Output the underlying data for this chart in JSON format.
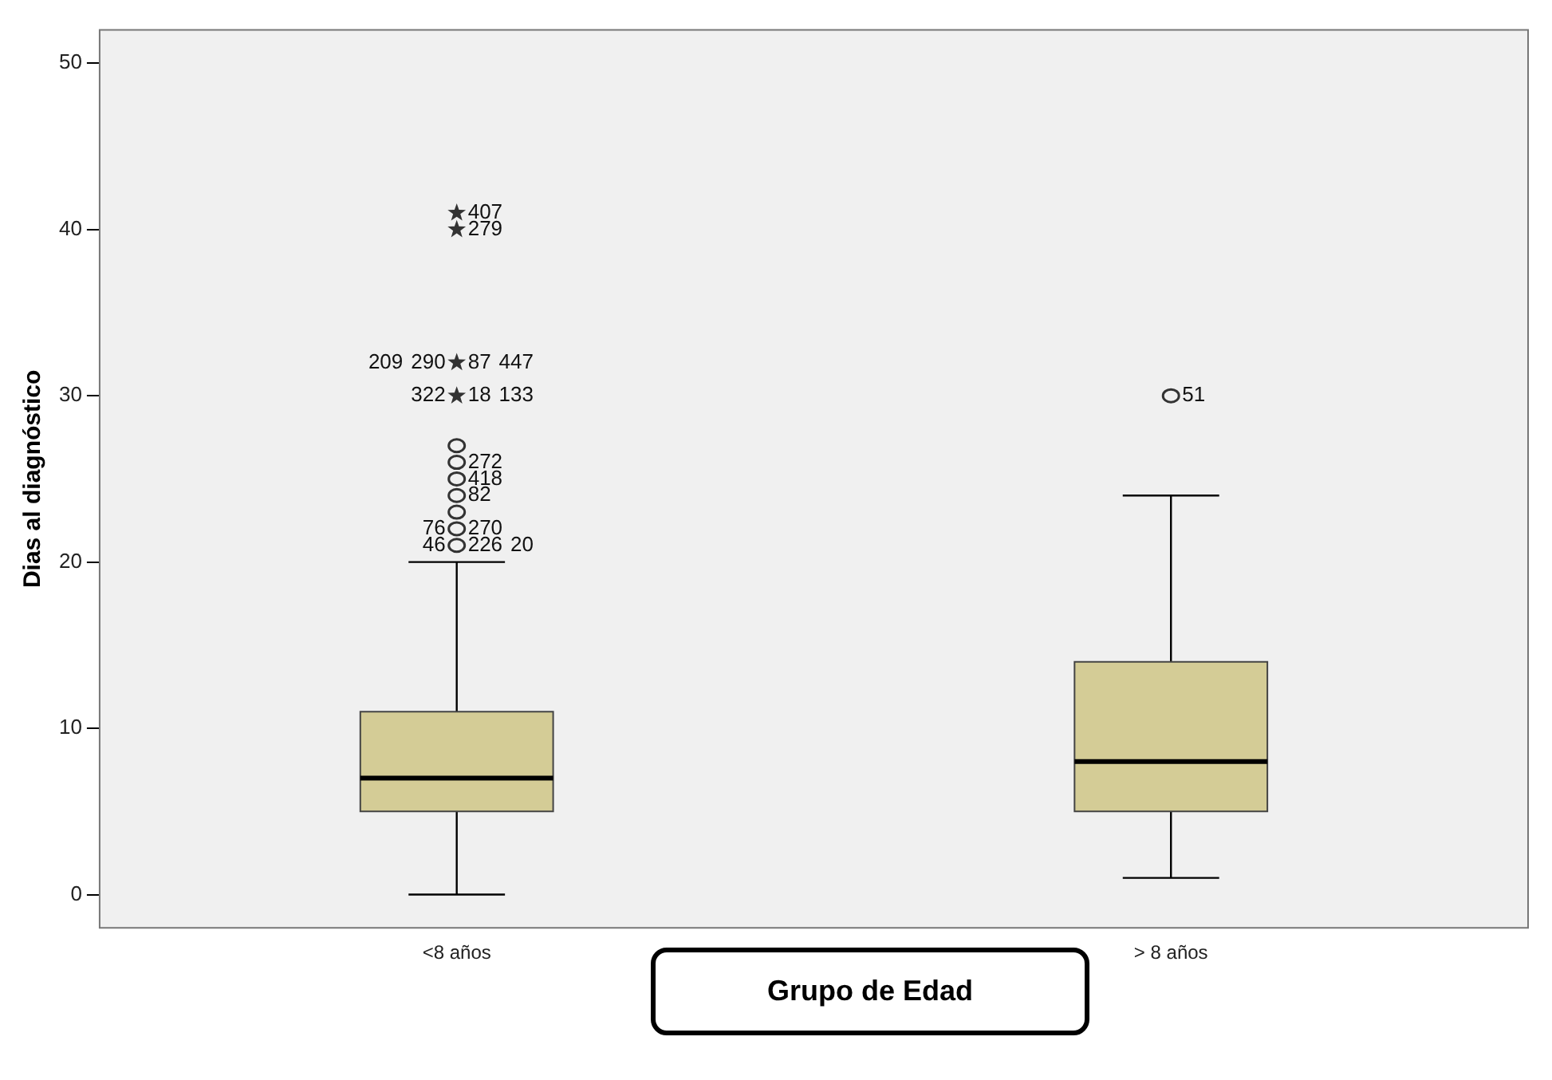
{
  "chart_data": {
    "type": "box",
    "xlabel": "Grupo de Edad",
    "ylabel": "Dias al diagnóstico",
    "categories": [
      "<8 años",
      "> 8 años"
    ],
    "color": "#d4cc96",
    "boxes": [
      {
        "low": 0,
        "q1": 5,
        "median": 7,
        "q3": 11,
        "high": 20
      },
      {
        "low": 1,
        "q1": 5,
        "median": 8,
        "q3": 14,
        "high": 24
      }
    ],
    "series": [
      {
        "type": "scatter",
        "marker": "circle",
        "color": "#333333",
        "x": [
          "<8 años",
          "<8 años",
          "<8 años",
          "<8 años",
          "<8 años",
          "<8 años",
          "<8 años",
          "> 8 años"
        ],
        "values": [
          21,
          22,
          23,
          24,
          25,
          26,
          27,
          30
        ]
      },
      {
        "type": "scatter",
        "marker": "star",
        "color": "#333333",
        "x": [
          "<8 años",
          "<8 años",
          "<8 años",
          "<8 años"
        ],
        "values": [
          30,
          32,
          40,
          41
        ]
      }
    ],
    "ylim": [
      -2,
      52
    ],
    "yticks": [
      0,
      10,
      20,
      30,
      40,
      50
    ],
    "grid": false,
    "legend": false,
    "annotations": [
      {
        "text": "407",
        "x": "<8 años",
        "y": 41
      },
      {
        "text": "279",
        "x": "<8 años",
        "y": 40
      },
      {
        "text": "87",
        "x": "<8 años",
        "y": 32
      },
      {
        "text": "290",
        "x": "<8 años",
        "y": 32
      },
      {
        "text": "447",
        "x": "<8 años",
        "y": 32
      },
      {
        "text": "209",
        "x": "<8 años",
        "y": 32
      },
      {
        "text": "18",
        "x": "<8 años",
        "y": 30
      },
      {
        "text": "322",
        "x": "<8 años",
        "y": 30
      },
      {
        "text": "133",
        "x": "<8 años",
        "y": 30
      },
      {
        "text": "272",
        "x": "<8 años",
        "y": 26
      },
      {
        "text": "418",
        "x": "<8 años",
        "y": 25
      },
      {
        "text": "82",
        "x": "<8 años",
        "y": 24
      },
      {
        "text": "270",
        "x": "<8 años",
        "y": 22
      },
      {
        "text": "76",
        "x": "<8 años",
        "y": 22
      },
      {
        "text": "226",
        "x": "<8 años",
        "y": 21
      },
      {
        "text": "46",
        "x": "<8 años",
        "y": 21
      },
      {
        "text": "20",
        "x": "<8 años",
        "y": 21
      },
      {
        "text": "51",
        "x": "> 8 años",
        "y": 30
      }
    ]
  }
}
